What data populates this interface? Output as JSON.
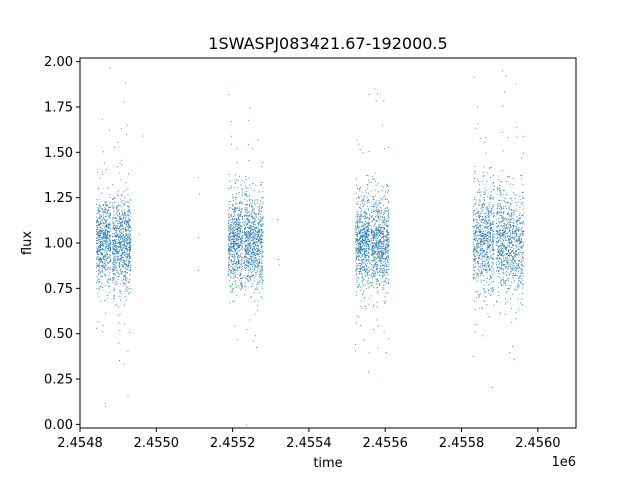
{
  "chart_data": {
    "type": "scatter",
    "title": "1SWASPJ083421.67-192000.5",
    "xlabel": "time",
    "ylabel": "flux",
    "x_offset_label": "1e6",
    "xlim": [
      2454800,
      2456100
    ],
    "ylim": [
      -0.02,
      2.02
    ],
    "x_ticks": [
      2454800,
      2455000,
      2455200,
      2455400,
      2455600,
      2455800,
      2456000
    ],
    "x_tick_labels": [
      "2.4548",
      "2.4550",
      "2.4552",
      "2.4554",
      "2.4556",
      "2.4558",
      "2.4560"
    ],
    "y_ticks": [
      0.0,
      0.25,
      0.5,
      0.75,
      1.0,
      1.25,
      1.5,
      1.75,
      2.0
    ],
    "y_tick_labels": [
      "0.00",
      "0.25",
      "0.50",
      "0.75",
      "1.00",
      "1.25",
      "1.50",
      "1.75",
      "2.00"
    ],
    "grid": false,
    "marker_color": "#1f77b4",
    "series": [
      {
        "clusters": [
          {
            "x_range": [
              2454843,
              2454933
            ],
            "center": 1.0,
            "spread": 0.16,
            "n": 1400
          },
          {
            "x_range": [
              2455188,
              2455280
            ],
            "center": 1.0,
            "spread": 0.17,
            "n": 1400
          },
          {
            "x_range": [
              2455522,
              2455610
            ],
            "center": 1.0,
            "spread": 0.17,
            "n": 1400
          },
          {
            "x_range": [
              2455830,
              2455963
            ],
            "center": 1.0,
            "spread": 0.19,
            "n": 1600
          }
        ],
        "isolated_points": [
          {
            "x": 2455110,
            "y": 1.36
          },
          {
            "x": 2455113,
            "y": 1.27
          },
          {
            "x": 2455110,
            "y": 1.03
          },
          {
            "x": 2455110,
            "y": 0.85
          },
          {
            "x": 2455320,
            "y": 0.91
          },
          {
            "x": 2455322,
            "y": 0.88
          },
          {
            "x": 2455318,
            "y": 1.13
          },
          {
            "x": 2454965,
            "y": 1.59
          },
          {
            "x": 2454955,
            "y": 1.05
          }
        ]
      }
    ]
  }
}
